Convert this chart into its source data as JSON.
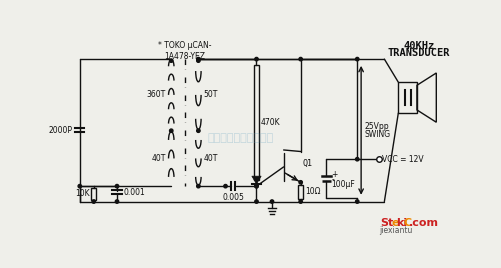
{
  "bg_color": "#efefea",
  "watermark": "杭州特普科技有限公司",
  "line_color": "#111111",
  "labels": {
    "cap_2000p": "2000P",
    "cap_0001": "0.001",
    "res_10k": "10K",
    "cap_0005": "0.005",
    "res_470k": "470K",
    "res_10ohm": "10Ω",
    "cap_100uf": "100μF",
    "vcc": "VCC = 12V",
    "transistor": "Q1",
    "transducer_line1": "40KHz",
    "transducer_line2": "TRANSDUCER",
    "transformer": "* TOKO μCAN-\n1A478-YEZ",
    "w360t": "360T",
    "w40t_left": "40T",
    "w50t": "50T",
    "w40t_right": "40T",
    "swing_line1": "25Vpp",
    "swing_line2": "SWING"
  }
}
